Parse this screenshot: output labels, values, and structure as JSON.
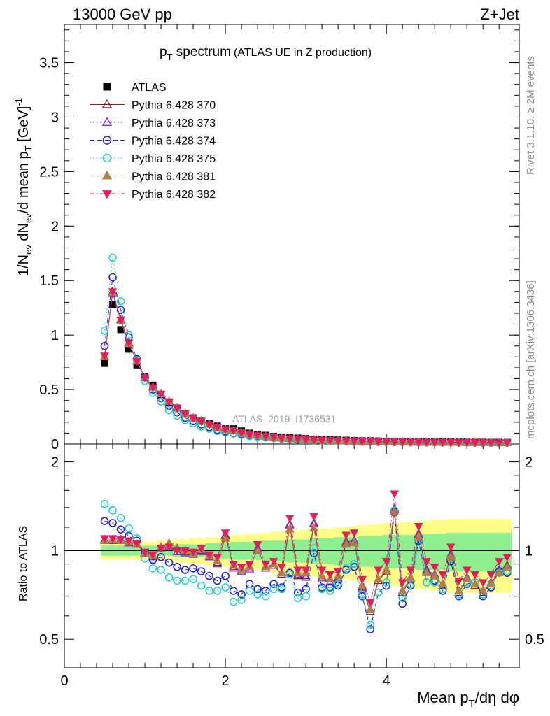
{
  "header": {
    "left": "13000 GeV pp",
    "right": "Z+Jet"
  },
  "plot_title": {
    "main": "p",
    "main_sub": "T",
    "main_rest": " spectrum",
    "note": "(ATLAS UE in Z production)"
  },
  "side_labels": {
    "rivet": "Rivet 3.1.10, ≥ 2M events",
    "mcplots": "mcplots.cern.ch [arXiv:1306.3436]"
  },
  "watermark": "ATLAS_2019_I1736531",
  "axis_labels": {
    "y_top": "1/N",
    "y_top_sub1": "ev",
    "y_top_mid": " dN",
    "y_top_sub2": "ev",
    "y_top_rest": "/d mean p",
    "y_top_sub3": "T",
    "y_top_unit": " [GeV]",
    "y_top_sup": "-1",
    "y_bottom": "Ratio to ATLAS",
    "x": "Mean p",
    "x_sub": "T",
    "x_rest": "/dη dφ"
  },
  "colors": {
    "atlas": "#000000",
    "p370": "#8b1a1a",
    "p373": "#7a2be2",
    "p374": "#1c1cd6",
    "p375": "#20d0c0",
    "p381": "#b0804a",
    "p382": "#e0205a",
    "band_yellow": "#ffff88",
    "band_green": "#90f090"
  },
  "chart_data": [
    {
      "type": "scatter",
      "x": [
        0.5,
        0.6,
        0.7,
        0.8,
        0.9,
        1.0,
        1.1,
        1.2,
        1.3,
        1.4,
        1.5,
        1.6,
        1.7,
        1.8,
        1.9,
        2.0,
        2.1,
        2.2,
        2.3,
        2.4,
        2.5,
        2.6,
        2.7,
        2.8,
        2.9,
        3.0,
        3.1,
        3.2,
        3.3,
        3.4,
        3.5,
        3.6,
        3.7,
        3.8,
        3.9,
        4.0,
        4.1,
        4.2,
        4.3,
        4.4,
        4.5,
        4.6,
        4.7,
        4.8,
        4.9,
        5.0,
        5.1,
        5.2,
        5.3,
        5.4,
        5.5
      ],
      "xlim": [
        0,
        5.65
      ],
      "ylim": [
        0,
        3.85
      ],
      "x_ticks": [
        0,
        2,
        4
      ],
      "y_ticks": [
        0,
        0.5,
        1,
        1.5,
        2,
        2.5,
        3,
        3.5
      ],
      "legend_position": "top-left",
      "series": [
        {
          "name": "ATLAS",
          "key": "atlas",
          "marker": "square",
          "values": [
            0.74,
            1.28,
            1.05,
            0.87,
            0.72,
            0.62,
            0.54,
            0.45,
            0.38,
            0.33,
            0.28,
            0.24,
            0.21,
            0.19,
            0.165,
            0.14,
            0.14,
            0.12,
            0.1,
            0.09,
            0.08,
            0.07,
            0.065,
            0.06,
            0.055,
            0.05,
            0.045,
            0.042,
            0.04,
            0.037,
            0.035,
            0.032,
            0.03,
            0.03,
            0.028,
            0.026,
            0.025,
            0.024,
            0.023,
            0.022,
            0.021,
            0.02,
            0.02,
            0.019,
            0.018,
            0.018,
            0.017,
            0.017,
            0.016,
            0.016,
            0.015
          ]
        },
        {
          "name": "Pythia 6.428 370",
          "key": "p370",
          "marker": "triangle-open",
          "dash": "",
          "values": [
            0.8,
            1.4,
            1.14,
            0.93,
            0.76,
            0.61,
            0.52,
            0.46,
            0.39,
            0.33,
            0.28,
            0.24,
            0.21,
            0.18,
            0.15,
            0.13,
            0.12,
            0.1,
            0.087,
            0.078,
            0.07,
            0.061,
            0.054,
            0.05,
            0.045,
            0.041,
            0.037,
            0.034,
            0.031,
            0.029,
            0.027,
            0.025,
            0.023,
            0.022,
            0.021,
            0.02,
            0.019,
            0.018,
            0.017,
            0.016,
            0.016,
            0.015,
            0.015,
            0.014,
            0.014,
            0.013,
            0.013,
            0.013,
            0.012,
            0.012,
            0.012
          ]
        },
        {
          "name": "Pythia 6.428 373",
          "key": "p373",
          "marker": "triangle-open",
          "dash": "2,3",
          "values": [
            0.8,
            1.38,
            1.13,
            0.92,
            0.76,
            0.61,
            0.52,
            0.46,
            0.39,
            0.33,
            0.28,
            0.24,
            0.21,
            0.18,
            0.15,
            0.13,
            0.12,
            0.1,
            0.087,
            0.078,
            0.07,
            0.061,
            0.054,
            0.05,
            0.045,
            0.041,
            0.037,
            0.034,
            0.031,
            0.029,
            0.027,
            0.025,
            0.023,
            0.022,
            0.021,
            0.02,
            0.019,
            0.018,
            0.017,
            0.016,
            0.016,
            0.015,
            0.015,
            0.014,
            0.014,
            0.013,
            0.013,
            0.013,
            0.012,
            0.012,
            0.012
          ]
        },
        {
          "name": "Pythia 6.428 374",
          "key": "p374",
          "marker": "circle-open",
          "dash": "7,4",
          "values": [
            0.9,
            1.53,
            1.23,
            0.98,
            0.78,
            0.61,
            0.5,
            0.42,
            0.35,
            0.29,
            0.24,
            0.21,
            0.18,
            0.155,
            0.13,
            0.115,
            0.1,
            0.09,
            0.078,
            0.07,
            0.063,
            0.056,
            0.05,
            0.046,
            0.042,
            0.038,
            0.035,
            0.032,
            0.03,
            0.028,
            0.026,
            0.024,
            0.022,
            0.021,
            0.02,
            0.019,
            0.018,
            0.017,
            0.016,
            0.016,
            0.015,
            0.015,
            0.014,
            0.014,
            0.013,
            0.013,
            0.013,
            0.012,
            0.012,
            0.012,
            0.011
          ]
        },
        {
          "name": "Pythia 6.428 375",
          "key": "p375",
          "marker": "circle-open",
          "dash": "2,3",
          "values": [
            1.04,
            1.71,
            1.31,
            1.0,
            0.77,
            0.58,
            0.47,
            0.39,
            0.31,
            0.26,
            0.22,
            0.19,
            0.16,
            0.14,
            0.12,
            0.105,
            0.095,
            0.083,
            0.073,
            0.066,
            0.06,
            0.054,
            0.048,
            0.044,
            0.04,
            0.037,
            0.034,
            0.031,
            0.029,
            0.027,
            0.025,
            0.023,
            0.021,
            0.02,
            0.019,
            0.018,
            0.017,
            0.017,
            0.016,
            0.015,
            0.015,
            0.014,
            0.014,
            0.013,
            0.013,
            0.012,
            0.012,
            0.012,
            0.011,
            0.011,
            0.011
          ]
        },
        {
          "name": "Pythia 6.428 381",
          "key": "p381",
          "marker": "triangle-filled",
          "dash": "7,4",
          "values": [
            0.8,
            1.39,
            1.13,
            0.92,
            0.76,
            0.61,
            0.52,
            0.46,
            0.39,
            0.33,
            0.28,
            0.24,
            0.21,
            0.18,
            0.15,
            0.13,
            0.12,
            0.1,
            0.087,
            0.078,
            0.07,
            0.061,
            0.054,
            0.05,
            0.045,
            0.041,
            0.037,
            0.034,
            0.031,
            0.029,
            0.027,
            0.025,
            0.023,
            0.022,
            0.021,
            0.02,
            0.019,
            0.018,
            0.017,
            0.016,
            0.016,
            0.015,
            0.015,
            0.014,
            0.014,
            0.013,
            0.013,
            0.013,
            0.012,
            0.012,
            0.012
          ]
        },
        {
          "name": "Pythia 6.428 382",
          "key": "p382",
          "marker": "triangle-down-filled",
          "dash": "7,3,2,3",
          "values": [
            0.81,
            1.4,
            1.14,
            0.93,
            0.76,
            0.61,
            0.52,
            0.46,
            0.39,
            0.33,
            0.28,
            0.24,
            0.21,
            0.18,
            0.155,
            0.135,
            0.125,
            0.105,
            0.09,
            0.08,
            0.072,
            0.063,
            0.056,
            0.052,
            0.047,
            0.043,
            0.039,
            0.036,
            0.033,
            0.031,
            0.029,
            0.027,
            0.025,
            0.024,
            0.023,
            0.022,
            0.021,
            0.02,
            0.019,
            0.018,
            0.018,
            0.017,
            0.017,
            0.016,
            0.016,
            0.015,
            0.015,
            0.015,
            0.014,
            0.014,
            0.014
          ]
        }
      ]
    },
    {
      "type": "scatter",
      "x": [
        0.5,
        0.6,
        0.7,
        0.8,
        0.9,
        1.0,
        1.1,
        1.2,
        1.3,
        1.4,
        1.5,
        1.6,
        1.7,
        1.8,
        1.9,
        2.0,
        2.1,
        2.2,
        2.3,
        2.4,
        2.5,
        2.6,
        2.7,
        2.8,
        2.9,
        3.0,
        3.1,
        3.2,
        3.3,
        3.4,
        3.5,
        3.6,
        3.7,
        3.8,
        3.9,
        4.0,
        4.1,
        4.2,
        4.3,
        4.4,
        4.5,
        4.6,
        4.7,
        4.8,
        4.9,
        5.0,
        5.1,
        5.2,
        5.3,
        5.4,
        5.5
      ],
      "xlim": [
        0,
        5.65
      ],
      "ylim": [
        0.4,
        2.3
      ],
      "log_y": true,
      "x_ticks": [
        0,
        2,
        4
      ],
      "y_ticks": [
        0.5,
        1,
        2
      ],
      "reference_line": 1,
      "band_yellow": [
        0.07,
        0.07,
        0.07,
        0.07,
        0.07,
        0.07,
        0.07,
        0.08,
        0.08,
        0.09,
        0.09,
        0.1,
        0.1,
        0.11,
        0.11,
        0.12,
        0.13,
        0.13,
        0.14,
        0.14,
        0.15,
        0.16,
        0.16,
        0.17,
        0.17,
        0.18,
        0.18,
        0.19,
        0.19,
        0.2,
        0.2,
        0.21,
        0.22,
        0.22,
        0.23,
        0.24,
        0.24,
        0.25,
        0.25,
        0.26,
        0.26,
        0.27,
        0.27,
        0.28,
        0.28,
        0.28,
        0.28,
        0.28,
        0.28,
        0.28,
        0.28
      ],
      "band_green": [
        0.04,
        0.04,
        0.04,
        0.04,
        0.04,
        0.04,
        0.04,
        0.04,
        0.04,
        0.05,
        0.05,
        0.05,
        0.05,
        0.06,
        0.06,
        0.06,
        0.07,
        0.07,
        0.07,
        0.07,
        0.08,
        0.08,
        0.08,
        0.09,
        0.09,
        0.09,
        0.1,
        0.1,
        0.1,
        0.11,
        0.11,
        0.11,
        0.12,
        0.12,
        0.12,
        0.13,
        0.13,
        0.13,
        0.13,
        0.14,
        0.14,
        0.14,
        0.14,
        0.15,
        0.15,
        0.15,
        0.15,
        0.15,
        0.15,
        0.15,
        0.15
      ],
      "series": [
        {
          "key": "p370",
          "marker": "triangle-open",
          "dash": "",
          "values": [
            1.08,
            1.09,
            1.08,
            1.07,
            1.05,
            0.98,
            0.96,
            1.02,
            1.03,
            0.99,
            0.99,
            0.97,
            1.0,
            0.95,
            0.91,
            1.12,
            0.88,
            0.85,
            0.87,
            1.01,
            0.87,
            0.89,
            0.83,
            1.22,
            0.82,
            0.82,
            1.23,
            0.81,
            0.78,
            0.8,
            1.07,
            1.08,
            0.75,
            0.62,
            0.79,
            0.85,
            1.38,
            0.72,
            0.8,
            1.13,
            0.85,
            0.82,
            0.76,
            0.97,
            0.72,
            0.8,
            0.76,
            0.72,
            0.77,
            0.85,
            0.89
          ]
        },
        {
          "key": "p373",
          "marker": "triangle-open",
          "dash": "2,3",
          "values": [
            1.09,
            1.08,
            1.09,
            1.06,
            1.05,
            0.98,
            0.95,
            1.03,
            1.03,
            0.99,
            0.98,
            0.97,
            0.99,
            0.95,
            0.9,
            1.13,
            0.87,
            0.85,
            0.86,
            1.02,
            0.87,
            0.89,
            0.84,
            1.23,
            0.83,
            0.81,
            1.24,
            0.8,
            0.78,
            0.81,
            1.06,
            1.08,
            0.74,
            0.63,
            0.8,
            0.86,
            1.39,
            0.73,
            0.81,
            1.14,
            0.86,
            0.83,
            0.77,
            0.96,
            0.73,
            0.81,
            0.77,
            0.73,
            0.78,
            0.86,
            0.88
          ]
        },
        {
          "key": "p374",
          "marker": "circle-open",
          "dash": "7,4",
          "values": [
            1.26,
            1.24,
            1.18,
            1.12,
            1.08,
            0.98,
            0.93,
            0.95,
            0.91,
            0.88,
            0.86,
            0.87,
            0.85,
            0.82,
            0.79,
            0.82,
            0.73,
            0.71,
            0.77,
            0.74,
            0.73,
            0.77,
            0.75,
            0.84,
            0.72,
            0.74,
            0.98,
            0.75,
            0.75,
            0.76,
            0.86,
            0.88,
            0.7,
            0.54,
            0.72,
            0.76,
            1.35,
            0.66,
            0.76,
            1.08,
            0.78,
            0.79,
            0.73,
            0.92,
            0.7,
            0.77,
            0.78,
            0.7,
            0.75,
            0.85,
            0.84
          ]
        },
        {
          "key": "p375",
          "marker": "circle-open",
          "dash": "2,3",
          "values": [
            1.44,
            1.37,
            1.29,
            1.19,
            1.1,
            0.94,
            0.87,
            0.86,
            0.81,
            0.79,
            0.79,
            0.8,
            0.76,
            0.73,
            0.73,
            0.75,
            0.67,
            0.68,
            0.73,
            0.71,
            0.7,
            0.74,
            0.74,
            0.83,
            0.69,
            0.7,
            1.02,
            0.74,
            0.73,
            0.77,
            0.87,
            0.9,
            0.71,
            0.56,
            0.72,
            0.78,
            1.37,
            0.69,
            0.77,
            1.09,
            0.78,
            0.78,
            0.74,
            0.94,
            0.71,
            0.78,
            0.78,
            0.71,
            0.76,
            0.84,
            0.85
          ]
        },
        {
          "key": "p381",
          "marker": "triangle-filled",
          "dash": "7,4",
          "values": [
            1.08,
            1.09,
            1.08,
            1.07,
            1.05,
            0.98,
            0.96,
            1.03,
            1.06,
            1.02,
            1.0,
            0.98,
            1.01,
            0.96,
            0.92,
            1.1,
            0.89,
            0.86,
            0.88,
            1.0,
            0.88,
            0.9,
            0.84,
            1.18,
            0.84,
            0.84,
            1.19,
            0.82,
            0.8,
            0.82,
            1.05,
            1.06,
            0.76,
            0.63,
            0.8,
            0.86,
            1.36,
            0.73,
            0.81,
            1.11,
            0.84,
            0.82,
            0.77,
            0.95,
            0.73,
            0.8,
            0.77,
            0.73,
            0.77,
            0.84,
            0.88
          ]
        },
        {
          "key": "p382",
          "marker": "triangle-down-filled",
          "dash": "7,3,2,3",
          "values": [
            1.1,
            1.1,
            1.09,
            1.08,
            1.06,
            0.99,
            0.97,
            1.02,
            1.03,
            1.0,
            1.0,
            0.99,
            1.02,
            0.97,
            0.95,
            1.15,
            0.9,
            0.88,
            0.9,
            1.05,
            0.9,
            0.92,
            0.88,
            1.29,
            0.86,
            0.86,
            1.31,
            0.86,
            0.83,
            0.85,
            1.13,
            1.15,
            0.8,
            0.67,
            0.86,
            0.92,
            1.56,
            0.78,
            0.86,
            1.21,
            0.92,
            0.88,
            0.83,
            1.03,
            0.79,
            0.86,
            0.83,
            0.78,
            0.83,
            0.92,
            0.95
          ]
        }
      ]
    }
  ]
}
